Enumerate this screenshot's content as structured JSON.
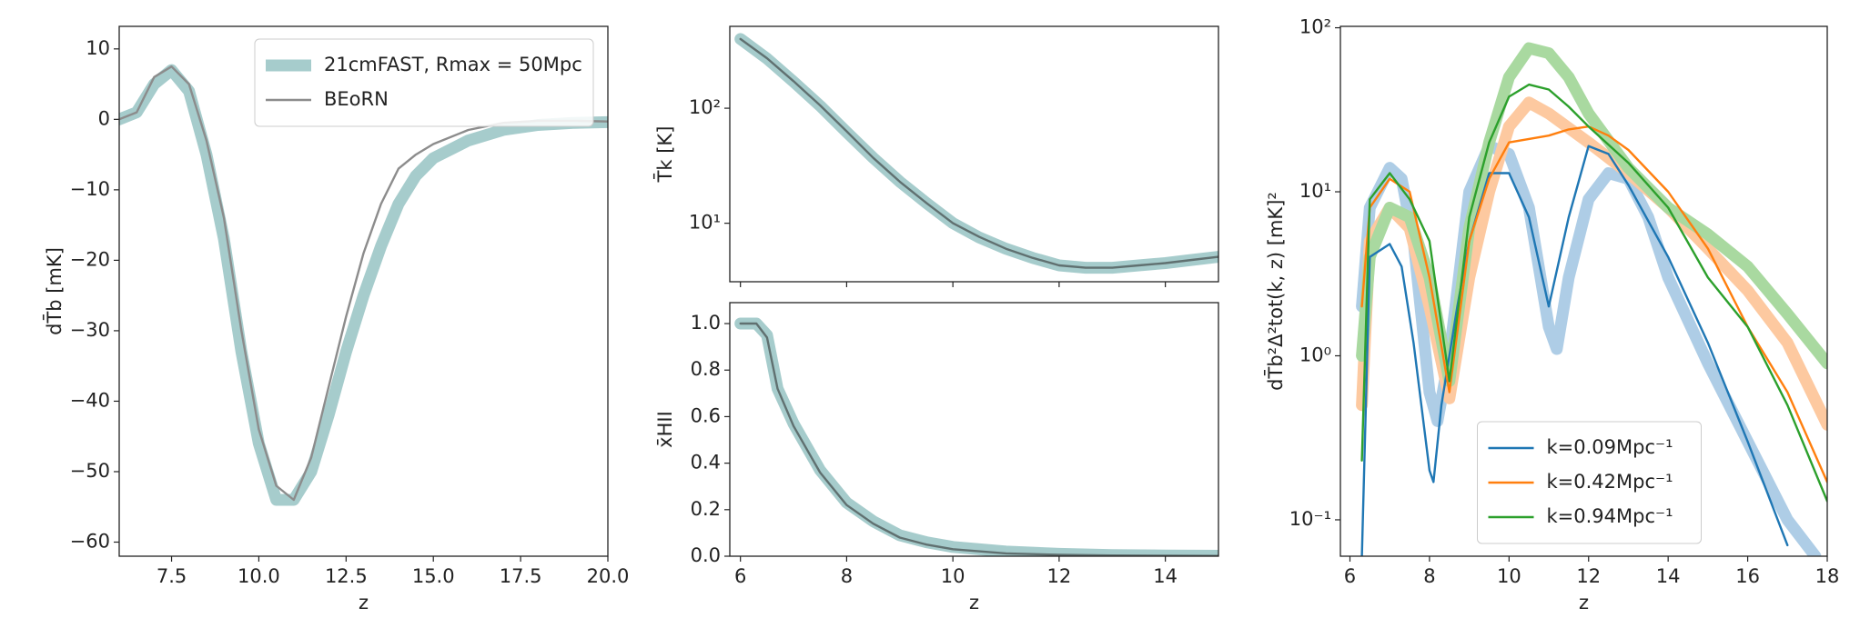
{
  "chart_data": [
    {
      "type": "line",
      "xlabel": "z",
      "ylabel": "dT̄b [mK]",
      "log": false,
      "legend": "upper right",
      "xlim": [
        6,
        20
      ],
      "ylim": [
        -62,
        13.2
      ],
      "xticks": [
        7.5,
        {
          "value": 10,
          "label": "10.0"
        },
        12.5,
        {
          "value": 15,
          "label": "15.0"
        },
        17.5,
        {
          "value": 20,
          "label": "20.0"
        }
      ],
      "yticks": [
        10,
        0,
        {
          "value": -10,
          "label": "−10"
        },
        {
          "value": -20,
          "label": "−20"
        },
        {
          "value": -30,
          "label": "−30"
        },
        {
          "value": -40,
          "label": "−40"
        },
        {
          "value": -50,
          "label": "−50"
        },
        {
          "value": -60,
          "label": "−60"
        }
      ],
      "x": [
        6,
        6.5,
        7,
        7.5,
        8,
        8.5,
        9,
        9.5,
        10,
        10.5,
        11,
        11.5,
        12,
        12.5,
        13,
        13.5,
        14,
        14.5,
        15,
        16,
        17,
        18,
        19,
        20
      ],
      "series": [
        {
          "name": "21cmFAST, Rmax = 50Mpc",
          "color": "#a6cccc",
          "linestyle": "thick",
          "values": [
            0,
            1,
            5,
            7,
            4,
            -5,
            -17,
            -33,
            -46,
            -54,
            -54,
            -50,
            -42,
            -33,
            -25,
            -18,
            -12,
            -8,
            -5.5,
            -3,
            -1.5,
            -0.8,
            -0.5,
            -0.4
          ]
        },
        {
          "name": "BEoRN",
          "color": "#8c8c8c",
          "linestyle": "thin",
          "values": [
            0,
            1,
            6,
            7.5,
            5,
            -3,
            -14,
            -30,
            -44,
            -52,
            -54,
            -48,
            -38,
            -28,
            -19,
            -12,
            -7,
            -5,
            -3.5,
            -1.5,
            -0.5,
            -0.2,
            -0.2,
            -0.3
          ]
        }
      ]
    },
    {
      "type": "line",
      "ylabel": "T̄k [K]",
      "log": true,
      "xticklabels": false,
      "xlim": [
        5.8,
        15
      ],
      "ylim": [
        3.1,
        515
      ],
      "xticks": [
        6,
        8,
        10,
        12,
        14
      ],
      "yticks": [
        {
          "value": 10,
          "label": "10¹"
        },
        {
          "value": 100,
          "label": "10²"
        }
      ],
      "x": [
        6,
        6.5,
        7,
        7.5,
        8,
        8.5,
        9,
        9.5,
        10,
        10.5,
        11,
        11.5,
        12,
        12.5,
        13,
        13.5,
        14,
        14.5,
        15
      ],
      "series": [
        {
          "color": "#a6cccc",
          "linestyle": "thick",
          "values": [
            400,
            270,
            170,
            105,
            62,
            37,
            23,
            15,
            10,
            7.5,
            6,
            5,
            4.3,
            4.1,
            4.1,
            4.3,
            4.5,
            4.8,
            5.1
          ]
        },
        {
          "color": "#607070",
          "linestyle": "thin",
          "values": [
            400,
            272,
            172,
            106,
            63,
            37,
            23,
            15,
            10,
            7.6,
            6,
            5,
            4.3,
            4.1,
            4.1,
            4.3,
            4.5,
            4.8,
            5.1
          ]
        }
      ]
    },
    {
      "type": "line",
      "xlabel": "z",
      "ylabel": "x̄HII",
      "log": false,
      "xlim": [
        5.8,
        15
      ],
      "ylim": [
        0,
        1.09
      ],
      "xticks": [
        6,
        8,
        10,
        12,
        14
      ],
      "yticks": [
        {
          "value": 0,
          "label": "0.0"
        },
        0.2,
        0.4,
        0.6,
        0.8,
        {
          "value": 1,
          "label": "1.0"
        }
      ],
      "x": [
        6,
        6.3,
        6.5,
        6.7,
        7,
        7.5,
        8,
        8.5,
        9,
        9.5,
        10,
        11,
        12,
        13,
        14,
        15
      ],
      "series": [
        {
          "color": "#a6cccc",
          "linestyle": "thick",
          "values": [
            1,
            1,
            0.95,
            0.72,
            0.57,
            0.37,
            0.23,
            0.15,
            0.09,
            0.06,
            0.04,
            0.02,
            0.01,
            0.005,
            0.003,
            0.002
          ]
        },
        {
          "color": "#607070",
          "linestyle": "thin",
          "values": [
            1,
            1,
            0.94,
            0.72,
            0.56,
            0.36,
            0.22,
            0.14,
            0.08,
            0.05,
            0.03,
            0.012,
            0.006,
            0.003,
            0.002,
            0.001
          ]
        }
      ]
    },
    {
      "type": "line",
      "xlabel": "z",
      "ylabel": "dT̄b²Δ²tot(k, z) [mK]²",
      "log": true,
      "legend": "lower center",
      "xlim": [
        5.76,
        18
      ],
      "ylim": [
        0.06,
        102
      ],
      "xticks": [
        6,
        8,
        10,
        12,
        14,
        16,
        18
      ],
      "yticks": [
        {
          "value": 0.1,
          "label": "10⁻¹"
        },
        {
          "value": 1,
          "label": "10⁰"
        },
        {
          "value": 10,
          "label": "10¹"
        },
        {
          "value": 100,
          "label": "10²"
        }
      ],
      "series": [
        {
          "color": "#aecde6",
          "linestyle": "thick",
          "x": [
            6.3,
            6.5,
            7,
            7.3,
            7.6,
            8,
            8.2,
            8.5,
            9,
            9.5,
            10,
            10.5,
            11,
            11.2,
            11.5,
            12,
            12.5,
            13,
            13.5,
            14,
            15,
            16,
            17,
            17.7
          ],
          "values": [
            2,
            8,
            14,
            12,
            5,
            0.6,
            0.4,
            1,
            10,
            19,
            17,
            8,
            1.5,
            1.1,
            3,
            9,
            13,
            12,
            7,
            3,
            0.9,
            0.3,
            0.1,
            0.06
          ]
        },
        {
          "color": "#fdc9a0",
          "linestyle": "thick",
          "x": [
            6.3,
            6.5,
            7,
            7.5,
            8,
            8.5,
            9,
            9.5,
            10,
            10.5,
            11,
            12,
            13,
            14,
            15,
            16,
            17,
            18
          ],
          "values": [
            0.5,
            5,
            8,
            6,
            2,
            0.55,
            3,
            10,
            25,
            35,
            30,
            20,
            13,
            8,
            4.5,
            2.5,
            1.2,
            0.38
          ]
        },
        {
          "color": "#a9d9a0",
          "linestyle": "thick",
          "x": [
            6.3,
            6.5,
            7,
            7.5,
            8,
            8.5,
            9,
            9.5,
            10,
            10.5,
            11,
            11.5,
            12,
            13,
            14,
            15,
            16,
            17,
            18
          ],
          "values": [
            1,
            4,
            8,
            7,
            3,
            0.7,
            6,
            20,
            50,
            75,
            70,
            50,
            30,
            14,
            8,
            5.5,
            3.5,
            1.8,
            0.9
          ]
        },
        {
          "name": "k=0.09Mpc⁻¹",
          "color": "#1f77b4",
          "linestyle": "thin",
          "x": [
            6.3,
            6.5,
            7,
            7.3,
            7.6,
            8,
            8.1,
            8.3,
            8.7,
            9,
            9.5,
            10,
            10.5,
            11,
            11.5,
            12,
            12.5,
            13,
            14,
            15,
            16,
            17
          ],
          "values": [
            0.06,
            4,
            4.8,
            3.5,
            1.2,
            0.2,
            0.17,
            0.5,
            2,
            5,
            13,
            13,
            7,
            2,
            7,
            19,
            17,
            11,
            4,
            1.2,
            0.3,
            0.07
          ]
        },
        {
          "name": "k=0.42Mpc⁻¹",
          "color": "#ff7f0e",
          "linestyle": "thin",
          "x": [
            6.3,
            6.5,
            7,
            7.5,
            8,
            8.5,
            9,
            9.5,
            10,
            10.5,
            11,
            11.5,
            12,
            12.5,
            13,
            14,
            15,
            16,
            17,
            18
          ],
          "values": [
            2,
            8,
            12,
            10,
            3,
            0.6,
            5,
            12,
            20,
            21,
            22,
            24,
            25,
            22,
            18,
            10,
            4.5,
            1.5,
            0.6,
            0.17
          ]
        },
        {
          "name": "k=0.94Mpc⁻¹",
          "color": "#2ca02c",
          "linestyle": "thin",
          "x": [
            6.3,
            6.5,
            7,
            7.5,
            8,
            8.5,
            9,
            9.5,
            10,
            10.5,
            11,
            11.5,
            12,
            13,
            14,
            15,
            16,
            17,
            18
          ],
          "values": [
            0.23,
            9,
            13,
            9,
            5,
            0.7,
            7,
            20,
            38,
            45,
            42,
            33,
            25,
            15,
            8,
            3,
            1.5,
            0.5,
            0.13
          ]
        }
      ]
    }
  ]
}
